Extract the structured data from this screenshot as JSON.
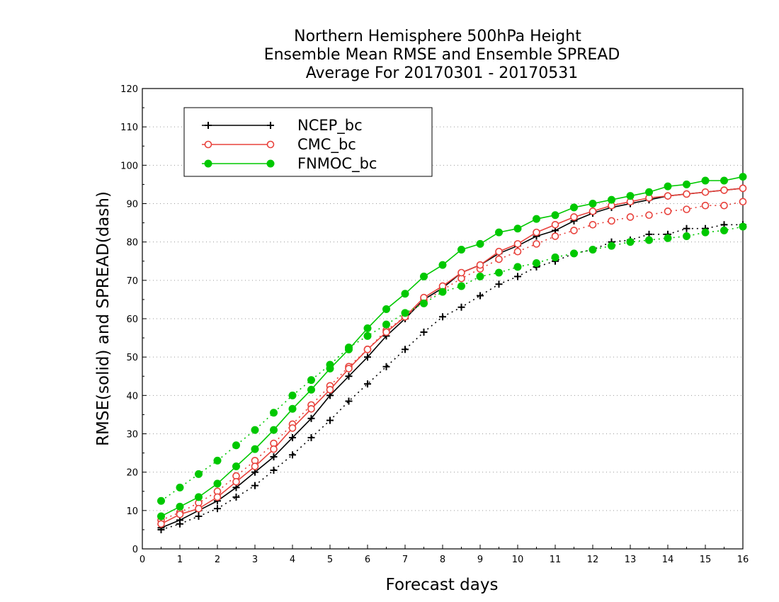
{
  "chart_data": {
    "type": "line",
    "title_lines": [
      "Northern Hemisphere 500hPa Height",
      "Ensemble Mean RMSE and Ensemble SPREAD",
      "Average For 20170301 - 20170531"
    ],
    "xlabel": "Forecast days",
    "ylabel": "RMSE(solid) and SPREAD(dash)",
    "xlim": [
      0,
      16
    ],
    "ylim": [
      0,
      120
    ],
    "x_ticks": [
      "0",
      "1",
      "2",
      "3",
      "4",
      "5",
      "6",
      "7",
      "8",
      "9",
      "10",
      "11",
      "12",
      "13",
      "14",
      "15",
      "16"
    ],
    "y_ticks": [
      "0",
      "10",
      "20",
      "30",
      "40",
      "50",
      "60",
      "70",
      "80",
      "90",
      "100",
      "110",
      "120"
    ],
    "grid": "horizontal dotted",
    "legend_position": "top-left",
    "x": [
      0.5,
      1,
      1.5,
      2,
      2.5,
      3,
      3.5,
      4,
      4.5,
      5,
      5.5,
      6,
      6.5,
      7,
      7.5,
      8,
      8.5,
      9,
      9.5,
      10,
      10.5,
      11,
      11.5,
      12,
      12.5,
      13,
      13.5,
      14,
      14.5,
      15,
      15.5,
      16
    ],
    "series": [
      {
        "name": "NCEP_bc",
        "color": "#000000",
        "marker": "plus",
        "rmse": [
          5.5,
          7.5,
          10,
          12.5,
          16,
          20,
          24,
          29,
          34,
          40,
          45,
          50,
          55.5,
          60,
          65,
          68,
          72,
          74,
          77,
          79,
          81.5,
          83,
          85.5,
          87.5,
          89,
          90,
          91,
          92,
          92.5,
          93,
          93.5,
          94
        ],
        "spread": [
          5,
          6.5,
          8.5,
          10.5,
          13.5,
          16.5,
          20.5,
          24.5,
          29,
          33.5,
          38.5,
          43,
          47.5,
          52,
          56.5,
          60.5,
          63,
          66,
          69,
          71,
          73.5,
          75,
          77,
          78,
          80,
          80.5,
          82,
          82,
          83.5,
          83.5,
          84.5,
          84.5
        ]
      },
      {
        "name": "CMC_bc",
        "color": "#e8423c",
        "marker": "open-circle",
        "rmse": [
          6.5,
          9,
          10.5,
          13.5,
          17.5,
          21.5,
          26,
          31.5,
          36.5,
          41.5,
          47,
          52,
          56.5,
          60.5,
          65.5,
          68.5,
          72,
          74,
          77.5,
          79.5,
          82.5,
          84.5,
          86.5,
          88,
          89.5,
          90.5,
          91.5,
          92,
          92.5,
          93,
          93.5,
          94
        ],
        "spread": [
          7.5,
          9.5,
          12,
          15,
          19,
          23,
          27.5,
          32.5,
          37.5,
          42.5,
          47.5,
          52,
          57,
          60.5,
          64.5,
          67.5,
          70.5,
          73,
          75.5,
          77.5,
          79.5,
          81.5,
          83,
          84.5,
          85.5,
          86.5,
          87,
          88,
          88.5,
          89.5,
          89.5,
          90.5
        ]
      },
      {
        "name": "FNMOC_bc",
        "color": "#00c800",
        "marker": "filled-circle",
        "rmse": [
          8.5,
          11,
          13.5,
          17,
          21.5,
          26,
          31,
          36.5,
          41.5,
          47,
          52,
          57.5,
          62.5,
          66.5,
          71,
          74,
          78,
          79.5,
          82.5,
          83.5,
          86,
          87,
          89,
          90,
          91,
          92,
          93,
          94.5,
          95,
          96,
          96,
          97
        ],
        "spread": [
          12.5,
          16,
          19.5,
          23,
          27,
          31,
          35.5,
          40,
          44,
          48,
          52.5,
          55.5,
          58.5,
          61.5,
          64,
          67,
          68.5,
          71,
          72,
          73.5,
          74.5,
          76,
          77,
          78,
          79,
          80,
          80.5,
          81,
          81.5,
          82.5,
          83,
          84
        ]
      }
    ]
  }
}
